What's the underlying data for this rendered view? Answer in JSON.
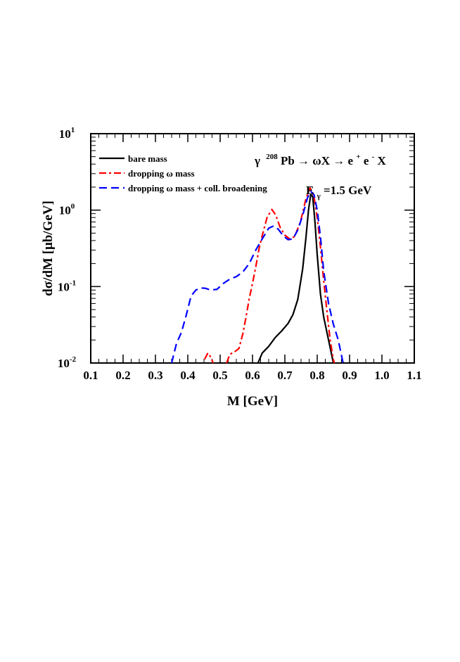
{
  "chart_data": {
    "type": "line",
    "title": "",
    "xlabel": "M [GeV]",
    "ylabel": "dσ/dM [μb/GeV]",
    "xlim": [
      0.1,
      1.1
    ],
    "ylim": [
      0.01,
      10
    ],
    "yscale": "log",
    "x_ticks": [
      "0.1",
      "0.2",
      "0.3",
      "0.4",
      "0.5",
      "0.6",
      "0.7",
      "0.8",
      "0.9",
      "1.0",
      "1.1"
    ],
    "y_ticks": [
      {
        "base": "10",
        "exp": "-2"
      },
      {
        "base": "10",
        "exp": "-1"
      },
      {
        "base": "10",
        "exp": "0"
      },
      {
        "base": "10",
        "exp": "1"
      }
    ],
    "reaction": {
      "gamma": "γ",
      "a": "208",
      "rest": "Pb → ωX → e",
      "eplus": "+",
      "e": "e",
      "eminus": "-",
      "x": " X"
    },
    "energy": {
      "e": "E",
      "sub": "γ",
      "value": "=1.5 GeV"
    },
    "legend_position": "top-left",
    "series": [
      {
        "name": "bare mass",
        "color": "#000000",
        "dash": "solid",
        "points": [
          [
            0.617,
            0.01
          ],
          [
            0.63,
            0.0135
          ],
          [
            0.65,
            0.0165
          ],
          [
            0.67,
            0.0215
          ],
          [
            0.69,
            0.0262
          ],
          [
            0.71,
            0.033
          ],
          [
            0.725,
            0.043
          ],
          [
            0.74,
            0.068
          ],
          [
            0.755,
            0.17
          ],
          [
            0.765,
            0.43
          ],
          [
            0.773,
            1.0
          ],
          [
            0.78,
            1.6
          ],
          [
            0.786,
            1.5
          ],
          [
            0.793,
            0.7
          ],
          [
            0.8,
            0.26
          ],
          [
            0.81,
            0.08
          ],
          [
            0.82,
            0.04
          ],
          [
            0.835,
            0.02
          ],
          [
            0.85,
            0.01
          ]
        ]
      },
      {
        "name": "dropping ω mass",
        "color": "#ff0000",
        "dash": "dashdot",
        "segments": [
          [
            [
              0.452,
              0.0112
            ],
            [
              0.462,
              0.0135
            ],
            [
              0.472,
              0.0118
            ],
            [
              0.478,
              0.01
            ]
          ],
          [
            [
              0.52,
              0.01
            ],
            [
              0.53,
              0.013
            ],
            [
              0.545,
              0.014
            ],
            [
              0.558,
              0.0155
            ],
            [
              0.57,
              0.024
            ],
            [
              0.58,
              0.04
            ],
            [
              0.59,
              0.07
            ],
            [
              0.6,
              0.11
            ],
            [
              0.61,
              0.18
            ],
            [
              0.62,
              0.31
            ],
            [
              0.632,
              0.5
            ],
            [
              0.645,
              0.8
            ],
            [
              0.66,
              1.02
            ],
            [
              0.672,
              0.86
            ],
            [
              0.685,
              0.6
            ],
            [
              0.7,
              0.47
            ],
            [
              0.715,
              0.42
            ],
            [
              0.73,
              0.45
            ],
            [
              0.748,
              0.7
            ],
            [
              0.765,
              1.4
            ],
            [
              0.778,
              1.95
            ],
            [
              0.79,
              1.5
            ],
            [
              0.8,
              0.8
            ],
            [
              0.81,
              0.33
            ],
            [
              0.82,
              0.12
            ],
            [
              0.83,
              0.048
            ],
            [
              0.84,
              0.02
            ],
            [
              0.85,
              0.011
            ],
            [
              0.853,
              0.01
            ]
          ]
        ]
      },
      {
        "name": "dropping ω mass + coll. broadening",
        "color": "#0000ff",
        "dash": "dashed",
        "points": [
          [
            0.35,
            0.01
          ],
          [
            0.365,
            0.018
          ],
          [
            0.38,
            0.025
          ],
          [
            0.395,
            0.042
          ],
          [
            0.41,
            0.075
          ],
          [
            0.425,
            0.09
          ],
          [
            0.44,
            0.096
          ],
          [
            0.455,
            0.095
          ],
          [
            0.47,
            0.09
          ],
          [
            0.49,
            0.092
          ],
          [
            0.51,
            0.11
          ],
          [
            0.53,
            0.125
          ],
          [
            0.55,
            0.135
          ],
          [
            0.57,
            0.155
          ],
          [
            0.59,
            0.2
          ],
          [
            0.61,
            0.3
          ],
          [
            0.63,
            0.42
          ],
          [
            0.65,
            0.58
          ],
          [
            0.665,
            0.62
          ],
          [
            0.68,
            0.56
          ],
          [
            0.695,
            0.46
          ],
          [
            0.71,
            0.41
          ],
          [
            0.725,
            0.42
          ],
          [
            0.74,
            0.55
          ],
          [
            0.755,
            0.85
          ],
          [
            0.77,
            1.45
          ],
          [
            0.78,
            1.75
          ],
          [
            0.79,
            1.6
          ],
          [
            0.8,
            1.0
          ],
          [
            0.81,
            0.45
          ],
          [
            0.82,
            0.16
          ],
          [
            0.835,
            0.06
          ],
          [
            0.85,
            0.032
          ],
          [
            0.865,
            0.02
          ],
          [
            0.88,
            0.01
          ]
        ]
      }
    ]
  }
}
